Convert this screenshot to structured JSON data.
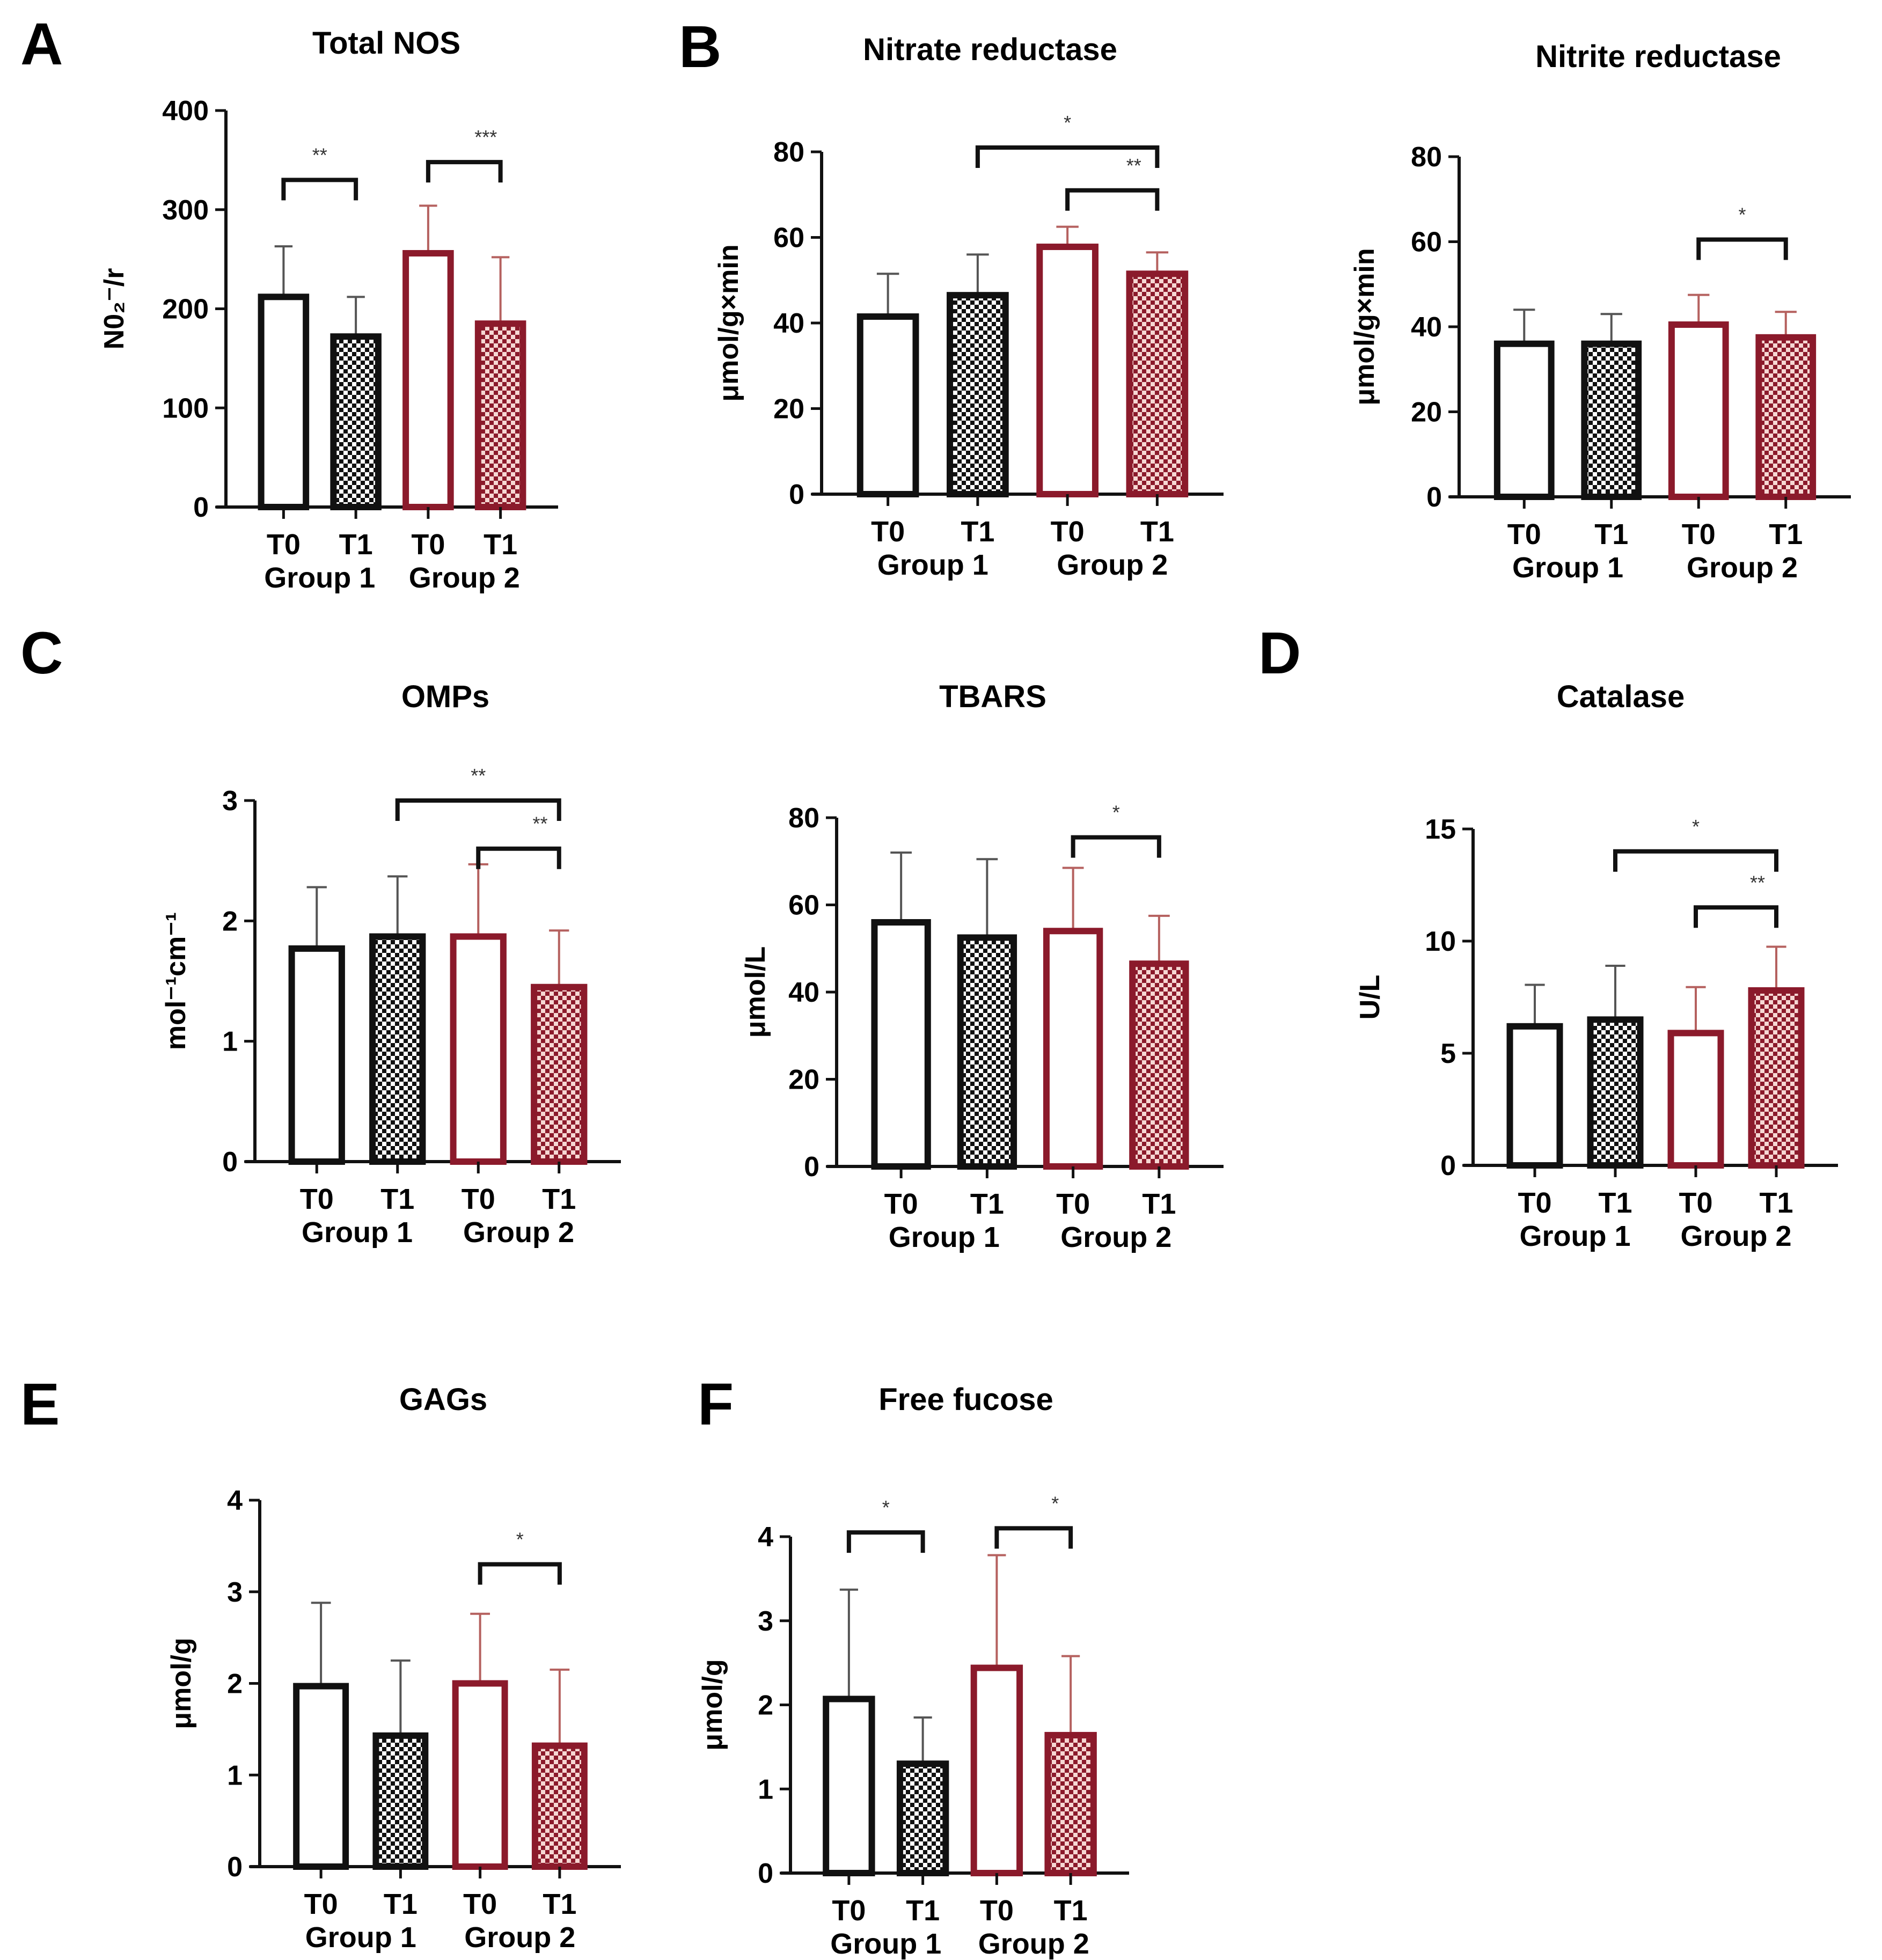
{
  "colors": {
    "group1": "#111111",
    "group2": "#8b1a2b",
    "group1_err": "#555555",
    "group2_err": "#b5615f",
    "pattern_light_g1": "#ffffff",
    "pattern_light_g2": "#f6d7d3"
  },
  "chart_data": [
    {
      "id": "total-nos",
      "panel_letter": "A",
      "type": "bar",
      "title": "Total NOS",
      "ylabel": "N0₂⁻/r",
      "ylabel_parts": {
        "base": "N0",
        "sub": "2",
        "sup": "—",
        "tail": "/r"
      },
      "ylim": [
        0,
        400
      ],
      "yticks": [
        0,
        100,
        200,
        300,
        400
      ],
      "categories": [
        "T0",
        "T1",
        "T0",
        "T1"
      ],
      "groups": [
        "Group 1",
        "Group 2"
      ],
      "values": [
        212,
        172,
        256,
        185
      ],
      "errors_upper": [
        263,
        212,
        304,
        252
      ],
      "significance": [
        {
          "from": 0,
          "to": 1,
          "label": "**",
          "level": 330
        },
        {
          "from": 2,
          "to": 3,
          "label": "***",
          "level": 348
        }
      ]
    },
    {
      "id": "nitrate-reductase",
      "panel_letter": "B",
      "type": "bar",
      "title": "Nitrate reductase",
      "ylabel": "μmol/g×min",
      "ylim": [
        0,
        80
      ],
      "yticks": [
        0,
        20,
        40,
        60,
        80
      ],
      "categories": [
        "T0",
        "T1",
        "T0",
        "T1"
      ],
      "groups": [
        "Group 1",
        "Group 2"
      ],
      "values": [
        41.5,
        46.5,
        57.8,
        51.5
      ],
      "errors_upper": [
        51.5,
        56,
        62.5,
        56.5
      ],
      "significance": [
        {
          "from": 1,
          "to": 3,
          "label": "*",
          "level": 81
        },
        {
          "from": 2,
          "to": 3,
          "label": "**",
          "level": 71
        }
      ]
    },
    {
      "id": "nitrite-reductase",
      "panel_letter": "",
      "type": "bar",
      "title": "Nitrite reductase",
      "ylabel": "μmol/g×min",
      "ylim": [
        0,
        80
      ],
      "yticks": [
        0,
        20,
        40,
        60,
        80
      ],
      "categories": [
        "T0",
        "T1",
        "T0",
        "T1"
      ],
      "groups": [
        "Group 1",
        "Group 2"
      ],
      "values": [
        36,
        36,
        40.5,
        37.5
      ],
      "errors_upper": [
        44,
        43,
        47.5,
        43.5
      ],
      "significance": [
        {
          "from": 2,
          "to": 3,
          "label": "*",
          "level": 60.5
        }
      ]
    },
    {
      "id": "omps",
      "panel_letter": "C",
      "type": "bar",
      "title": "OMPs",
      "ylabel": "mol⁻¹cm⁻¹",
      "ylim": [
        0,
        3
      ],
      "yticks": [
        0,
        1,
        2,
        3
      ],
      "categories": [
        "T0",
        "T1",
        "T0",
        "T1"
      ],
      "groups": [
        "Group 1",
        "Group 2"
      ],
      "values": [
        1.77,
        1.87,
        1.87,
        1.45
      ],
      "errors_upper": [
        2.28,
        2.37,
        2.47,
        1.92
      ],
      "significance": [
        {
          "from": 1,
          "to": 3,
          "label": "**",
          "level": 3.0
        },
        {
          "from": 2,
          "to": 3,
          "label": "**",
          "level": 2.6
        }
      ]
    },
    {
      "id": "tbars",
      "panel_letter": "",
      "type": "bar",
      "title": "TBARS",
      "ylabel": "μmol/L",
      "ylim": [
        0,
        80
      ],
      "yticks": [
        0,
        20,
        40,
        60,
        80
      ],
      "categories": [
        "T0",
        "T1",
        "T0",
        "T1"
      ],
      "groups": [
        "Group 1",
        "Group 2"
      ],
      "values": [
        56,
        52.5,
        54,
        46.5
      ],
      "errors_upper": [
        72,
        70.5,
        68.5,
        57.5
      ],
      "significance": [
        {
          "from": 2,
          "to": 3,
          "label": "*",
          "level": 75.5
        }
      ]
    },
    {
      "id": "catalase",
      "panel_letter": "D",
      "type": "bar",
      "title": "Catalase",
      "ylabel": "U/L",
      "ylim": [
        0,
        15
      ],
      "yticks": [
        0,
        5,
        10,
        15
      ],
      "categories": [
        "T0",
        "T1",
        "T0",
        "T1"
      ],
      "groups": [
        "Group 1",
        "Group 2"
      ],
      "values": [
        6.2,
        6.5,
        5.9,
        7.8
      ],
      "errors_upper": [
        8.05,
        8.9,
        7.95,
        9.75
      ],
      "significance": [
        {
          "from": 1,
          "to": 3,
          "label": "*",
          "level": 14.0
        },
        {
          "from": 2,
          "to": 3,
          "label": "**",
          "level": 11.5
        }
      ]
    },
    {
      "id": "gags",
      "panel_letter": "E",
      "type": "bar",
      "title": "GAGs",
      "ylabel": "μmol/g",
      "ylim": [
        0,
        4
      ],
      "yticks": [
        0,
        1,
        2,
        3,
        4
      ],
      "categories": [
        "T0",
        "T1",
        "T0",
        "T1"
      ],
      "groups": [
        "Group 1",
        "Group 2"
      ],
      "values": [
        1.97,
        1.43,
        2.0,
        1.32
      ],
      "errors_upper": [
        2.88,
        2.25,
        2.76,
        2.15
      ],
      "significance": [
        {
          "from": 2,
          "to": 3,
          "label": "*",
          "level": 3.3
        }
      ]
    },
    {
      "id": "free-fucose",
      "panel_letter": "F",
      "type": "bar",
      "title": "Free fucose",
      "ylabel": "μmol/g",
      "ylim": [
        0,
        4
      ],
      "yticks": [
        0,
        1,
        2,
        3,
        4
      ],
      "categories": [
        "T0",
        "T1",
        "T0",
        "T1"
      ],
      "groups": [
        "Group 1",
        "Group 2"
      ],
      "values": [
        2.07,
        1.3,
        2.44,
        1.64
      ],
      "errors_upper": [
        3.37,
        1.85,
        3.78,
        2.58
      ],
      "significance": [
        {
          "from": 0,
          "to": 1,
          "label": "*",
          "level": 4.05
        },
        {
          "from": 2,
          "to": 3,
          "label": "*",
          "level": 4.1
        }
      ]
    }
  ]
}
